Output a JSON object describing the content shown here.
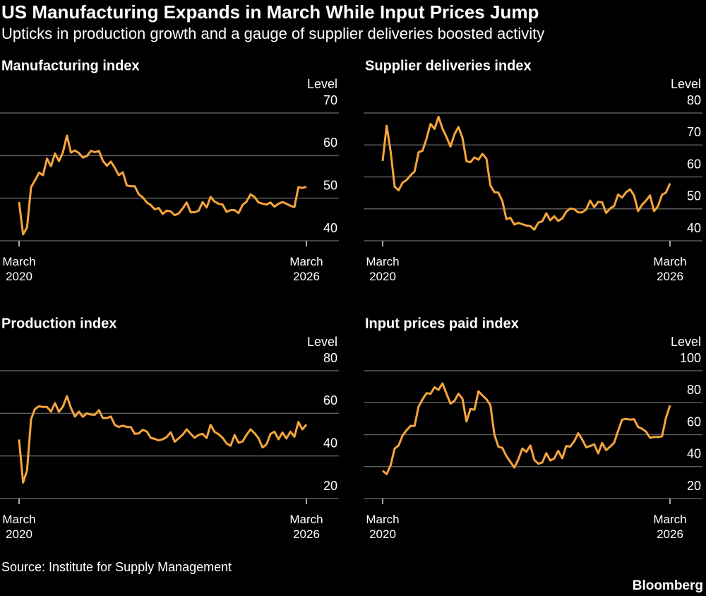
{
  "title": "US Manufacturing Expands in March While Input Prices Jump",
  "subtitle": "Upticks in production growth and a gauge of supplier deliveries boosted activity",
  "source": "Source: Institute for Supply Management",
  "credit": "Bloomberg",
  "chart_data": [
    {
      "type": "line",
      "title": "Manufacturing index",
      "y_label": "Level",
      "color": "#f6a43c",
      "grid": true,
      "categories": [
        "March 2020",
        null,
        null,
        null,
        null,
        null,
        null,
        null,
        null,
        null,
        null,
        null,
        null,
        null,
        null,
        null,
        null,
        null,
        null,
        null,
        null,
        null,
        null,
        null,
        null,
        null,
        null,
        null,
        null,
        null,
        null,
        null,
        null,
        null,
        null,
        null,
        null,
        null,
        null,
        null,
        null,
        null,
        null,
        null,
        null,
        null,
        null,
        null,
        null,
        null,
        null,
        null,
        null,
        null,
        null,
        null,
        null,
        null,
        null,
        null,
        null,
        null,
        null,
        null,
        null,
        null,
        null,
        null,
        null,
        null,
        null,
        null,
        "March 2026"
      ],
      "values": [
        49.1,
        41.5,
        43.1,
        52.6,
        54.2,
        56.0,
        55.4,
        59.3,
        57.5,
        60.5,
        58.7,
        60.8,
        64.7,
        60.7,
        61.2,
        60.6,
        59.5,
        59.9,
        61.1,
        60.8,
        61.1,
        58.8,
        57.6,
        58.6,
        57.1,
        55.4,
        56.1,
        53.0,
        52.8,
        52.8,
        50.9,
        50.2,
        49.0,
        48.4,
        47.4,
        47.7,
        46.3,
        47.1,
        46.9,
        46.0,
        46.4,
        47.6,
        49.0,
        46.7,
        46.7,
        47.1,
        49.1,
        47.8,
        50.3,
        49.2,
        48.7,
        48.5,
        46.8,
        47.2,
        47.2,
        46.5,
        48.4,
        49.2,
        50.9,
        50.3,
        49.0,
        48.7,
        48.5,
        49.0,
        48.0,
        48.7,
        49.1,
        48.7,
        48.2,
        47.9,
        52.6,
        52.4,
        52.7
      ],
      "ylim": [
        40,
        70
      ],
      "yticks": [
        40,
        50,
        60,
        70
      ]
    },
    {
      "type": "line",
      "title": "Supplier deliveries index",
      "y_label": "Level",
      "color": "#f6a43c",
      "grid": true,
      "categories": [
        "March 2020",
        null,
        null,
        null,
        null,
        null,
        null,
        null,
        null,
        null,
        null,
        null,
        null,
        null,
        null,
        null,
        null,
        null,
        null,
        null,
        null,
        null,
        null,
        null,
        null,
        null,
        null,
        null,
        null,
        null,
        null,
        null,
        null,
        null,
        null,
        null,
        null,
        null,
        null,
        null,
        null,
        null,
        null,
        null,
        null,
        null,
        null,
        null,
        null,
        null,
        null,
        null,
        null,
        null,
        null,
        null,
        null,
        null,
        null,
        null,
        null,
        null,
        null,
        null,
        null,
        null,
        null,
        null,
        null,
        null,
        null,
        null,
        "March 2026"
      ],
      "values": [
        65.0,
        76.0,
        68.0,
        56.9,
        55.8,
        58.2,
        59.0,
        60.5,
        61.7,
        67.7,
        68.2,
        72.0,
        76.6,
        75.0,
        78.8,
        75.1,
        72.5,
        69.5,
        73.4,
        75.6,
        72.2,
        64.9,
        64.6,
        66.1,
        65.4,
        67.2,
        65.7,
        57.3,
        55.2,
        55.1,
        52.4,
        46.8,
        47.2,
        45.1,
        45.6,
        45.2,
        44.8,
        44.6,
        43.5,
        45.7,
        46.1,
        48.6,
        46.4,
        47.7,
        46.2,
        47.0,
        49.1,
        50.1,
        49.9,
        48.9,
        48.9,
        49.8,
        52.6,
        50.5,
        52.2,
        52.0,
        48.7,
        50.1,
        50.9,
        54.5,
        53.5,
        55.2,
        56.1,
        54.2,
        49.3,
        51.3,
        52.6,
        54.2,
        49.3,
        50.8,
        54.4,
        55.1,
        58.0
      ],
      "ylim": [
        40,
        80
      ],
      "yticks": [
        40,
        50,
        60,
        70,
        80
      ]
    },
    {
      "type": "line",
      "title": "Production index",
      "y_label": "Level",
      "color": "#f6a43c",
      "grid": true,
      "categories": [
        "March 2020",
        null,
        null,
        null,
        null,
        null,
        null,
        null,
        null,
        null,
        null,
        null,
        null,
        null,
        null,
        null,
        null,
        null,
        null,
        null,
        null,
        null,
        null,
        null,
        null,
        null,
        null,
        null,
        null,
        null,
        null,
        null,
        null,
        null,
        null,
        null,
        null,
        null,
        null,
        null,
        null,
        null,
        null,
        null,
        null,
        null,
        null,
        null,
        null,
        null,
        null,
        null,
        null,
        null,
        null,
        null,
        null,
        null,
        null,
        null,
        null,
        null,
        null,
        null,
        null,
        null,
        null,
        null,
        null,
        null,
        null,
        null,
        "March 2026"
      ],
      "values": [
        47.7,
        27.5,
        33.2,
        57.3,
        62.1,
        63.3,
        63.0,
        63.0,
        60.8,
        64.8,
        60.7,
        63.2,
        68.1,
        62.5,
        58.5,
        60.8,
        58.4,
        60.0,
        59.4,
        59.3,
        61.5,
        57.8,
        57.8,
        58.5,
        54.5,
        53.6,
        54.2,
        53.6,
        53.5,
        50.4,
        50.6,
        52.3,
        51.5,
        48.5,
        48.0,
        47.3,
        47.8,
        48.9,
        51.1,
        46.7,
        48.3,
        50.0,
        52.5,
        50.4,
        48.5,
        49.9,
        50.4,
        48.4,
        54.6,
        51.3,
        50.2,
        48.5,
        45.9,
        44.8,
        49.8,
        46.2,
        46.8,
        49.9,
        52.5,
        50.7,
        48.3,
        44.0,
        45.4,
        50.3,
        51.4,
        47.8,
        51.0,
        48.2,
        51.4,
        49.0,
        55.9,
        52.5,
        54.7
      ],
      "ylim": [
        20,
        80
      ],
      "yticks": [
        20,
        40,
        60,
        80
      ]
    },
    {
      "type": "line",
      "title": "Input prices paid index",
      "y_label": "Level",
      "color": "#f6a43c",
      "grid": true,
      "categories": [
        "March 2020",
        null,
        null,
        null,
        null,
        null,
        null,
        null,
        null,
        null,
        null,
        null,
        null,
        null,
        null,
        null,
        null,
        null,
        null,
        null,
        null,
        null,
        null,
        null,
        null,
        null,
        null,
        null,
        null,
        null,
        null,
        null,
        null,
        null,
        null,
        null,
        null,
        null,
        null,
        null,
        null,
        null,
        null,
        null,
        null,
        null,
        null,
        null,
        null,
        null,
        null,
        null,
        null,
        null,
        null,
        null,
        null,
        null,
        null,
        null,
        null,
        null,
        null,
        null,
        null,
        null,
        null,
        null,
        null,
        null,
        null,
        null,
        "March 2026"
      ],
      "values": [
        37.4,
        35.3,
        40.8,
        51.3,
        53.2,
        59.5,
        62.8,
        65.5,
        65.4,
        77.6,
        82.1,
        86.0,
        85.6,
        89.6,
        88.0,
        92.1,
        85.7,
        79.4,
        81.2,
        85.7,
        82.4,
        68.2,
        76.1,
        75.6,
        87.1,
        84.6,
        82.2,
        78.5,
        60.0,
        52.5,
        51.7,
        46.6,
        43.0,
        39.4,
        44.5,
        51.3,
        49.2,
        53.2,
        44.2,
        41.8,
        42.6,
        48.4,
        43.8,
        45.1,
        49.9,
        45.2,
        52.9,
        52.5,
        55.8,
        60.9,
        57.0,
        52.1,
        52.9,
        54.0,
        48.3,
        54.8,
        50.3,
        52.5,
        54.9,
        62.4,
        69.4,
        69.8,
        69.4,
        69.7,
        64.8,
        63.7,
        61.9,
        58.0,
        58.5,
        58.5,
        59.0,
        70.5,
        78.3
      ],
      "ylim": [
        20,
        100
      ],
      "yticks": [
        20,
        40,
        60,
        80,
        100
      ]
    }
  ]
}
